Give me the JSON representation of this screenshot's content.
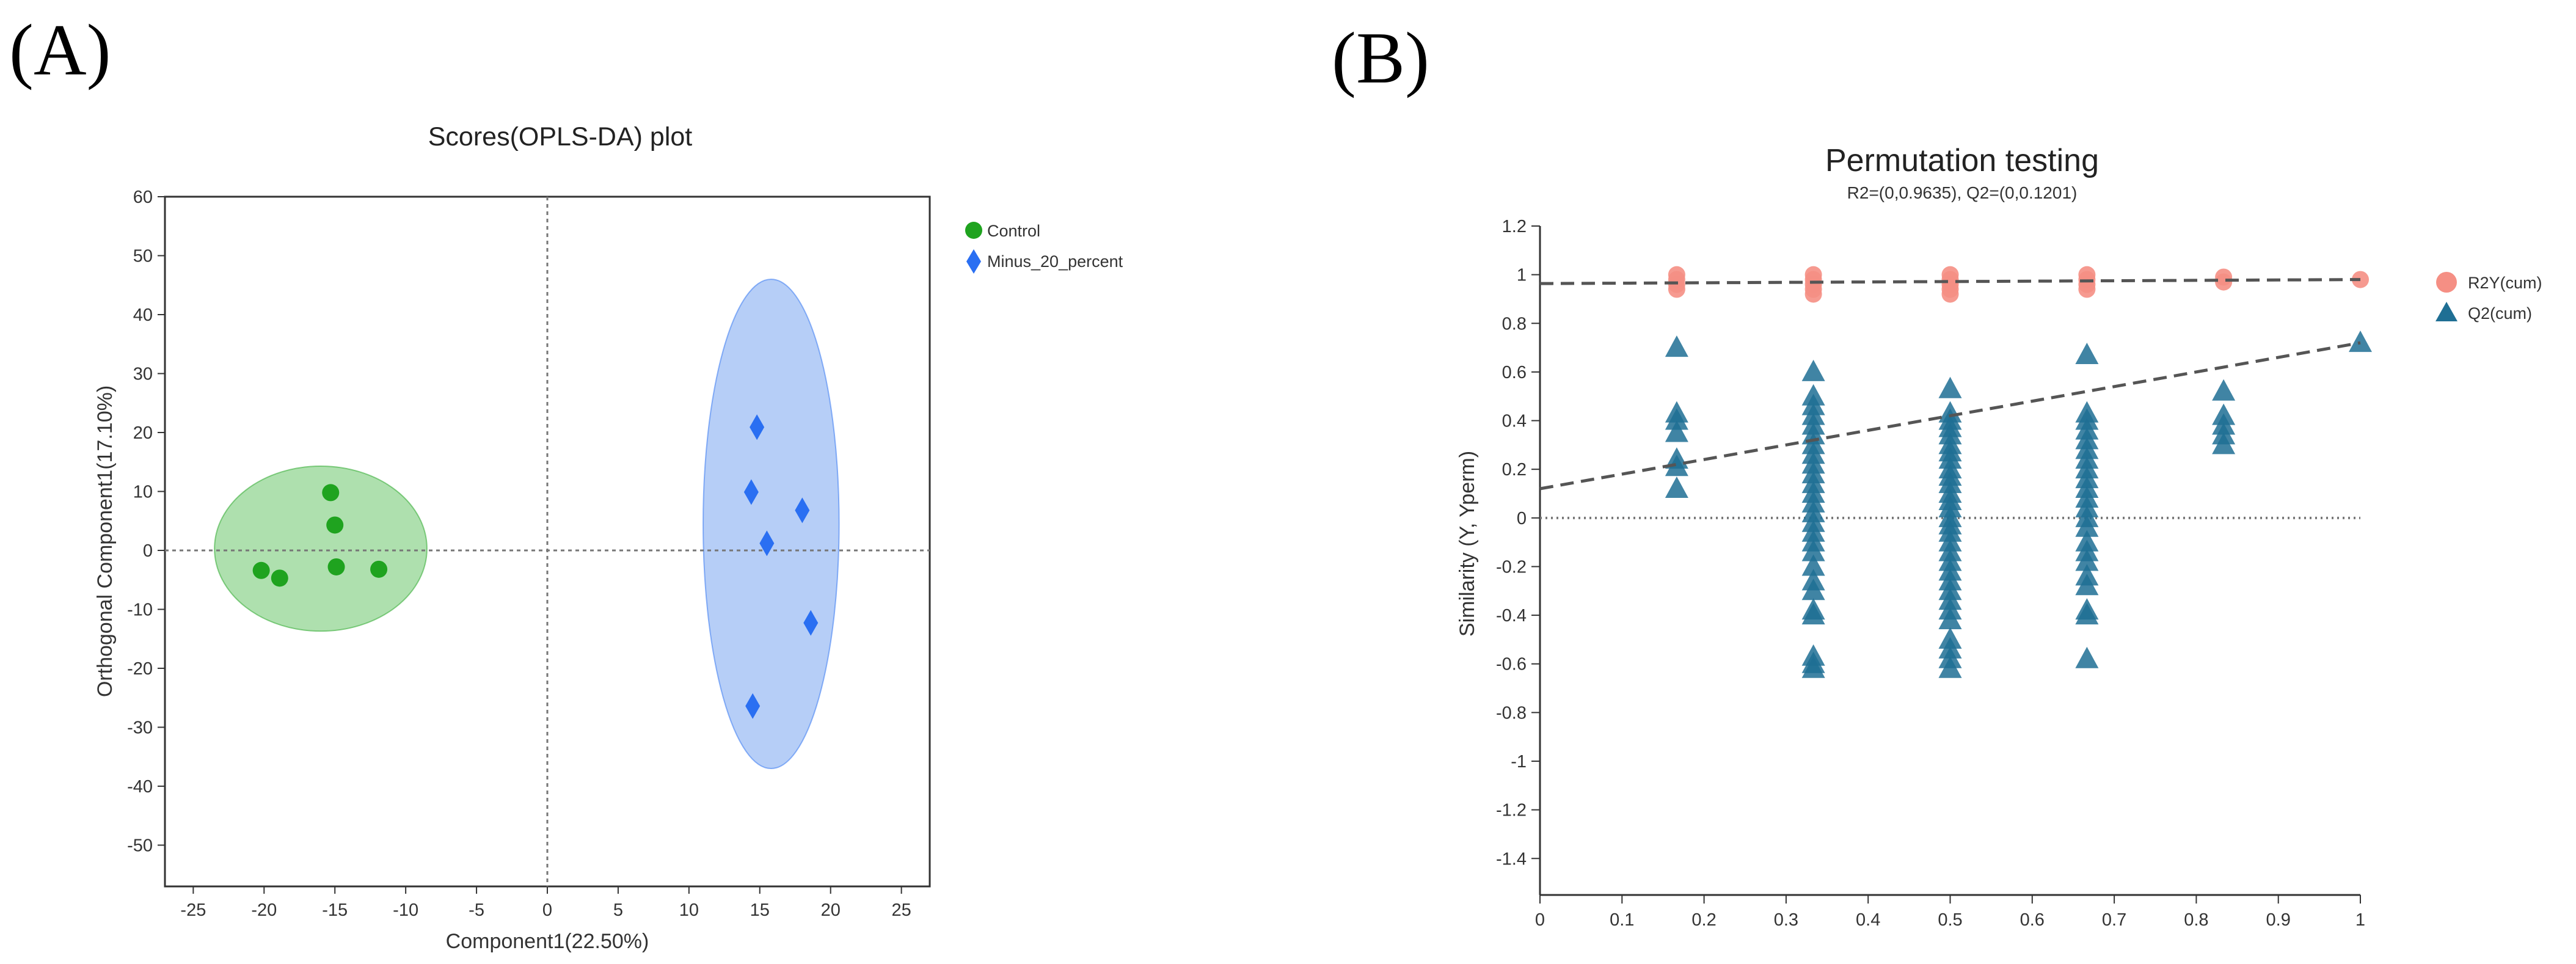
{
  "panels": {
    "a": {
      "label": "(A)"
    },
    "b": {
      "label": "(B)"
    }
  },
  "colors": {
    "control": "#1fa31f",
    "control_ellipse": "#6cc66c",
    "minus": "#2a6ff2",
    "minus_ellipse": "#7aa5f0",
    "r2y": "#f58f84",
    "q2": "#1f6f94",
    "axis": "#333333",
    "dotted": "#777777",
    "trend": "#555555"
  },
  "chart_data": [
    {
      "type": "scatter",
      "title": "Scores(OPLS-DA) plot",
      "xlabel": "Component1(22.50%)",
      "ylabel": "Orthogonal Component1(17.10%)",
      "xlim": [
        -27,
        27
      ],
      "ylim": [
        -57,
        60
      ],
      "xticks": [
        -25,
        -20,
        -15,
        -10,
        -5,
        0,
        5,
        10,
        15,
        20,
        25
      ],
      "yticks": [
        60,
        50,
        40,
        30,
        20,
        10,
        0,
        -10,
        -20,
        -30,
        -40,
        -50
      ],
      "legend": "top-right",
      "series": [
        {
          "name": "Control",
          "marker": "circle",
          "x": [
            -15.3,
            -15.0,
            -14.9,
            -20.2,
            -18.9,
            -11.9
          ],
          "y": [
            9.8,
            4.3,
            -2.8,
            -3.4,
            -4.7,
            -3.2
          ],
          "ellipse": {
            "cx": -16.0,
            "cy": 0.3,
            "rx": 7.5,
            "ry": 14
          }
        },
        {
          "name": "Minus_20_percent",
          "marker": "diamond",
          "x": [
            14.8,
            14.4,
            18.0,
            15.5,
            18.6,
            14.5
          ],
          "y": [
            20.9,
            9.9,
            6.8,
            1.2,
            -12.3,
            -26.4
          ],
          "ellipse": {
            "cx": 15.8,
            "cy": 4.5,
            "rx": 4.8,
            "ry": 41.5
          }
        }
      ]
    },
    {
      "type": "scatter",
      "title": "Permutation testing",
      "subtitle": "R2=(0,0.9635), Q2=(0,0.1201)",
      "xlabel": "",
      "ylabel": "Similarity (Y, Yperm)",
      "xlim": [
        0,
        1
      ],
      "ylim": [
        -1.55,
        1.2
      ],
      "xticks": [
        0,
        0.1,
        0.2,
        0.3,
        0.4,
        0.5,
        0.6,
        0.7,
        0.8,
        0.9,
        1
      ],
      "yticks": [
        1.2,
        1,
        0.8,
        0.6,
        0.4,
        0.2,
        0,
        -0.2,
        -0.4,
        -0.6,
        -0.8,
        -1,
        -1.2,
        -1.4
      ],
      "legend": "top-right",
      "series": [
        {
          "name": "R2Y(cum)",
          "marker": "circle",
          "points": [
            [
              0.1667,
              1.0
            ],
            [
              0.1667,
              0.98
            ],
            [
              0.1667,
              0.96
            ],
            [
              0.1667,
              0.94
            ],
            [
              0.3333,
              1.0
            ],
            [
              0.3333,
              0.98
            ],
            [
              0.3333,
              0.96
            ],
            [
              0.3333,
              0.94
            ],
            [
              0.3333,
              0.92
            ],
            [
              0.5,
              1.0
            ],
            [
              0.5,
              0.98
            ],
            [
              0.5,
              0.96
            ],
            [
              0.5,
              0.94
            ],
            [
              0.5,
              0.92
            ],
            [
              0.6667,
              1.0
            ],
            [
              0.6667,
              0.98
            ],
            [
              0.6667,
              0.96
            ],
            [
              0.6667,
              0.94
            ],
            [
              0.8333,
              0.99
            ],
            [
              0.8333,
              0.97
            ],
            [
              1.0,
              0.98
            ]
          ],
          "trend": {
            "x": [
              0,
              1
            ],
            "y": [
              0.9635,
              0.98
            ]
          }
        },
        {
          "name": "Q2(cum)",
          "marker": "triangle",
          "points": [
            [
              0.1667,
              0.7
            ],
            [
              0.1667,
              0.43
            ],
            [
              0.1667,
              0.4
            ],
            [
              0.1667,
              0.35
            ],
            [
              0.1667,
              0.24
            ],
            [
              0.1667,
              0.21
            ],
            [
              0.1667,
              0.12
            ],
            [
              0.3333,
              0.6
            ],
            [
              0.3333,
              0.5
            ],
            [
              0.3333,
              0.46
            ],
            [
              0.3333,
              0.42
            ],
            [
              0.3333,
              0.38
            ],
            [
              0.3333,
              0.34
            ],
            [
              0.3333,
              0.3
            ],
            [
              0.3333,
              0.26
            ],
            [
              0.3333,
              0.22
            ],
            [
              0.3333,
              0.18
            ],
            [
              0.3333,
              0.14
            ],
            [
              0.3333,
              0.1
            ],
            [
              0.3333,
              0.06
            ],
            [
              0.3333,
              0.02
            ],
            [
              0.3333,
              -0.02
            ],
            [
              0.3333,
              -0.06
            ],
            [
              0.3333,
              -0.1
            ],
            [
              0.3333,
              -0.14
            ],
            [
              0.3333,
              -0.2
            ],
            [
              0.3333,
              -0.26
            ],
            [
              0.3333,
              -0.3
            ],
            [
              0.3333,
              -0.38
            ],
            [
              0.3333,
              -0.4
            ],
            [
              0.3333,
              -0.57
            ],
            [
              0.3333,
              -0.6
            ],
            [
              0.3333,
              -0.62
            ],
            [
              0.5,
              0.53
            ],
            [
              0.5,
              0.43
            ],
            [
              0.5,
              0.4
            ],
            [
              0.5,
              0.37
            ],
            [
              0.5,
              0.34
            ],
            [
              0.5,
              0.3
            ],
            [
              0.5,
              0.27
            ],
            [
              0.5,
              0.24
            ],
            [
              0.5,
              0.2
            ],
            [
              0.5,
              0.17
            ],
            [
              0.5,
              0.14
            ],
            [
              0.5,
              0.1
            ],
            [
              0.5,
              0.07
            ],
            [
              0.5,
              0.04
            ],
            [
              0.5,
              0.0
            ],
            [
              0.5,
              -0.03
            ],
            [
              0.5,
              -0.06
            ],
            [
              0.5,
              -0.1
            ],
            [
              0.5,
              -0.14
            ],
            [
              0.5,
              -0.18
            ],
            [
              0.5,
              -0.22
            ],
            [
              0.5,
              -0.26
            ],
            [
              0.5,
              -0.3
            ],
            [
              0.5,
              -0.34
            ],
            [
              0.5,
              -0.38
            ],
            [
              0.5,
              -0.42
            ],
            [
              0.5,
              -0.5
            ],
            [
              0.5,
              -0.54
            ],
            [
              0.5,
              -0.58
            ],
            [
              0.5,
              -0.62
            ],
            [
              0.6667,
              0.67
            ],
            [
              0.6667,
              0.43
            ],
            [
              0.6667,
              0.4
            ],
            [
              0.6667,
              0.36
            ],
            [
              0.6667,
              0.32
            ],
            [
              0.6667,
              0.28
            ],
            [
              0.6667,
              0.24
            ],
            [
              0.6667,
              0.2
            ],
            [
              0.6667,
              0.16
            ],
            [
              0.6667,
              0.12
            ],
            [
              0.6667,
              0.08
            ],
            [
              0.6667,
              0.04
            ],
            [
              0.6667,
              0.0
            ],
            [
              0.6667,
              -0.04
            ],
            [
              0.6667,
              -0.1
            ],
            [
              0.6667,
              -0.14
            ],
            [
              0.6667,
              -0.18
            ],
            [
              0.6667,
              -0.24
            ],
            [
              0.6667,
              -0.28
            ],
            [
              0.6667,
              -0.38
            ],
            [
              0.6667,
              -0.4
            ],
            [
              0.6667,
              -0.58
            ],
            [
              0.8333,
              0.52
            ],
            [
              0.8333,
              0.42
            ],
            [
              0.8333,
              0.38
            ],
            [
              0.8333,
              0.34
            ],
            [
              0.8333,
              0.3
            ],
            [
              1.0,
              0.72
            ]
          ],
          "trend": {
            "x": [
              0,
              1
            ],
            "y": [
              0.1201,
              0.72
            ]
          }
        }
      ]
    }
  ]
}
